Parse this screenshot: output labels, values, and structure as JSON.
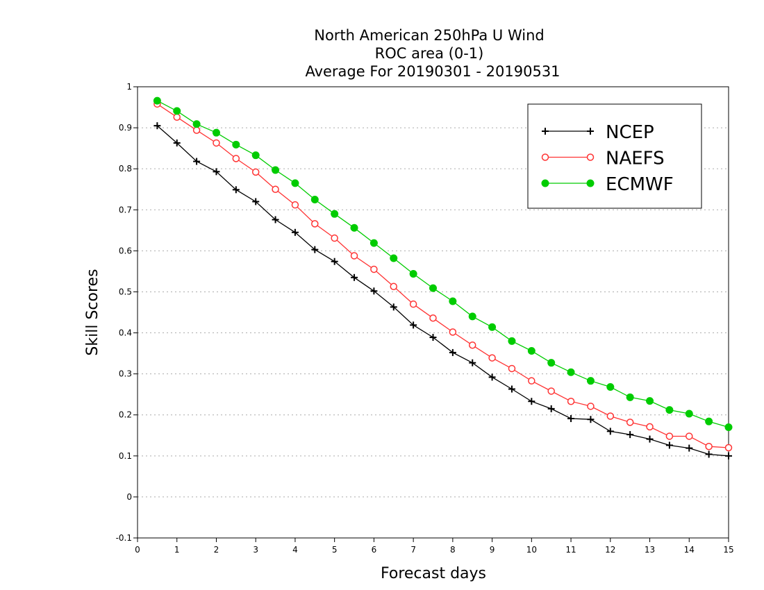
{
  "chart_data": {
    "type": "line",
    "title": [
      "North American 250hPa U Wind",
      "ROC area (0-1)",
      "Average For 20190301 - 20190531"
    ],
    "xlabel": "Forecast days",
    "ylabel": "Skill Scores",
    "xlim": [
      0,
      15
    ],
    "ylim": [
      -0.1,
      1
    ],
    "x_ticks": [
      "0",
      "1",
      "2",
      "3",
      "4",
      "5",
      "6",
      "7",
      "8",
      "9",
      "10",
      "11",
      "12",
      "13",
      "14",
      "15"
    ],
    "y_ticks": [
      "-0.1",
      "0",
      "0.1",
      "0.2",
      "0.3",
      "0.4",
      "0.5",
      "0.6",
      "0.7",
      "0.8",
      "0.9",
      "1"
    ],
    "grid": "dotted horizontal",
    "legend_position": "top-right",
    "x": [
      0.5,
      1,
      1.5,
      2,
      2.5,
      3,
      3.5,
      4,
      4.5,
      5,
      5.5,
      6,
      6.5,
      7,
      7.5,
      8,
      8.5,
      9,
      9.5,
      10,
      10.5,
      11,
      11.5,
      12,
      12.5,
      13,
      13.5,
      14,
      14.5,
      15
    ],
    "series": [
      {
        "name": "NCEP",
        "color": "#000000",
        "marker": "plus",
        "values": [
          0.905,
          0.863,
          0.818,
          0.793,
          0.749,
          0.72,
          0.676,
          0.645,
          0.603,
          0.574,
          0.535,
          0.502,
          0.463,
          0.419,
          0.389,
          0.352,
          0.327,
          0.292,
          0.263,
          0.233,
          0.215,
          0.191,
          0.189,
          0.16,
          0.152,
          0.141,
          0.126,
          0.119,
          0.104,
          0.1
        ]
      },
      {
        "name": "NAEFS",
        "color": "#ff3333",
        "marker": "open-circle",
        "values": [
          0.958,
          0.926,
          0.894,
          0.863,
          0.825,
          0.792,
          0.75,
          0.712,
          0.666,
          0.631,
          0.588,
          0.555,
          0.513,
          0.47,
          0.436,
          0.402,
          0.37,
          0.339,
          0.313,
          0.283,
          0.258,
          0.233,
          0.221,
          0.197,
          0.182,
          0.171,
          0.148,
          0.148,
          0.123,
          0.12
        ]
      },
      {
        "name": "ECMWF",
        "color": "#00cc00",
        "marker": "filled-circle",
        "values": [
          0.966,
          0.941,
          0.909,
          0.888,
          0.859,
          0.833,
          0.797,
          0.765,
          0.725,
          0.69,
          0.656,
          0.619,
          0.582,
          0.544,
          0.509,
          0.477,
          0.44,
          0.414,
          0.38,
          0.356,
          0.327,
          0.304,
          0.283,
          0.268,
          0.243,
          0.234,
          0.212,
          0.203,
          0.184,
          0.17
        ]
      }
    ]
  }
}
